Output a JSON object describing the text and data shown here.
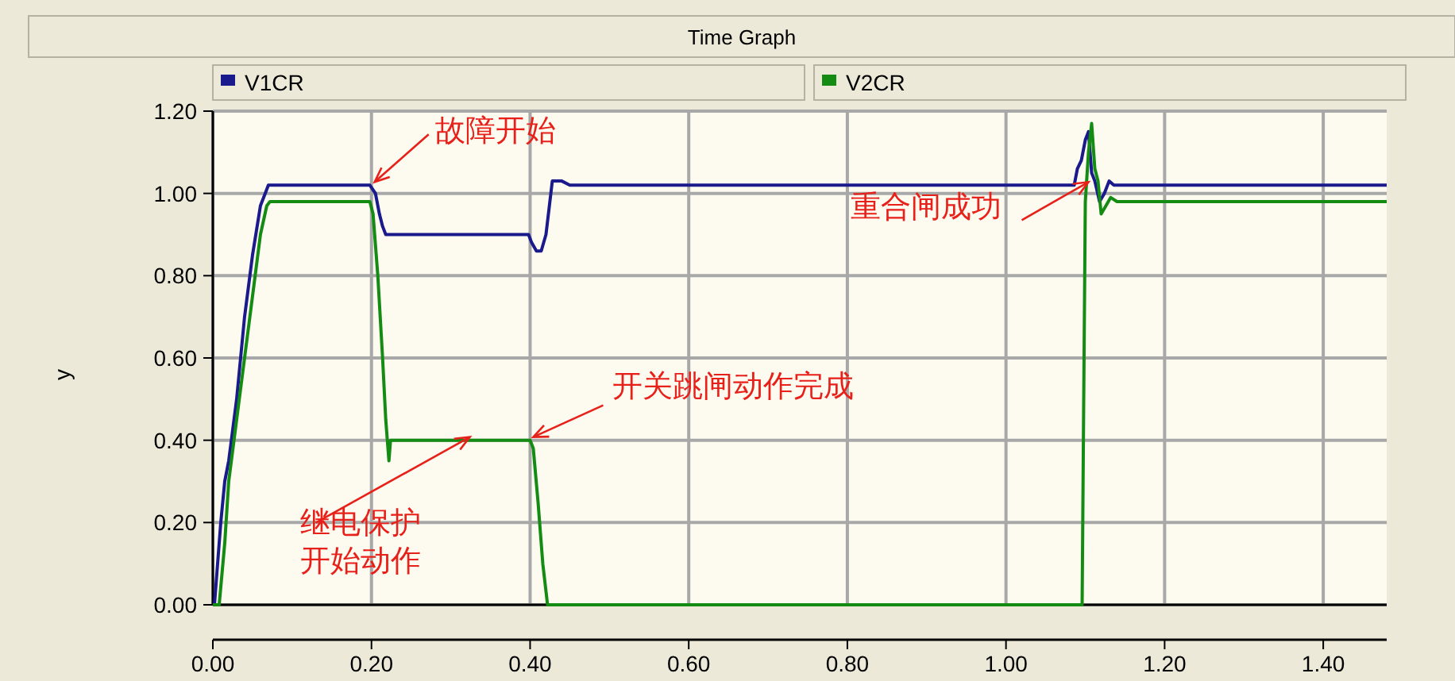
{
  "chart_data": {
    "type": "line",
    "title": "Time Graph",
    "ylabel": "y",
    "xlim": [
      0,
      1.48
    ],
    "ylim": [
      0,
      1.2
    ],
    "xticks": [
      {
        "value": 0,
        "label": "0.00"
      },
      {
        "value": 0.2,
        "label": "0.20"
      },
      {
        "value": 0.4,
        "label": "0.40"
      },
      {
        "value": 0.6,
        "label": "0.60"
      },
      {
        "value": 0.8,
        "label": "0.80"
      },
      {
        "value": 1.0,
        "label": "1.00"
      },
      {
        "value": 1.2,
        "label": "1.20"
      },
      {
        "value": 1.4,
        "label": "1.40"
      }
    ],
    "yticks": [
      {
        "value": 0,
        "label": "0.00"
      },
      {
        "value": 0.2,
        "label": "0.20"
      },
      {
        "value": 0.4,
        "label": "0.40"
      },
      {
        "value": 0.6,
        "label": "0.60"
      },
      {
        "value": 0.8,
        "label": "0.80"
      },
      {
        "value": 1.0,
        "label": "1.00"
      },
      {
        "value": 1.2,
        "label": "1.20"
      }
    ],
    "grid": true,
    "legend": "top",
    "series": [
      {
        "name": "V1CR",
        "color": "#1a1a8c",
        "x": [
          0,
          0.002,
          0.01,
          0.015,
          0.02,
          0.03,
          0.04,
          0.05,
          0.06,
          0.066,
          0.07,
          0.198,
          0.205,
          0.21,
          0.214,
          0.218,
          0.398,
          0.402,
          0.408,
          0.414,
          0.42,
          0.428,
          0.44,
          0.45,
          1.086,
          1.09,
          1.095,
          1.1,
          1.104,
          1.108,
          1.112,
          1.118,
          1.124,
          1.13,
          1.136,
          1.48
        ],
        "values": [
          0,
          0,
          0.2,
          0.3,
          0.35,
          0.5,
          0.7,
          0.85,
          0.97,
          1.0,
          1.02,
          1.02,
          1.0,
          0.95,
          0.92,
          0.9,
          0.9,
          0.88,
          0.86,
          0.86,
          0.9,
          1.03,
          1.03,
          1.02,
          1.02,
          1.06,
          1.08,
          1.13,
          1.15,
          1.05,
          1.03,
          0.98,
          1.0,
          1.03,
          1.02,
          1.02
        ]
      },
      {
        "name": "V2CR",
        "color": "#148c14",
        "x": [
          0,
          0.008,
          0.015,
          0.02,
          0.03,
          0.04,
          0.05,
          0.06,
          0.068,
          0.072,
          0.198,
          0.202,
          0.208,
          0.214,
          0.218,
          0.222,
          0.224,
          0.4,
          0.404,
          0.41,
          0.416,
          0.422,
          1.096,
          1.098,
          1.1,
          1.104,
          1.108,
          1.112,
          1.116,
          1.12,
          1.126,
          1.132,
          1.14,
          1.48
        ],
        "values": [
          0,
          0,
          0.15,
          0.3,
          0.45,
          0.6,
          0.75,
          0.9,
          0.97,
          0.98,
          0.98,
          0.95,
          0.8,
          0.6,
          0.45,
          0.35,
          0.4,
          0.4,
          0.38,
          0.25,
          0.1,
          0,
          0,
          0.5,
          0.98,
          1.1,
          1.17,
          1.06,
          1.03,
          0.95,
          0.97,
          0.99,
          0.98,
          0.98
        ]
      }
    ],
    "annotations": [
      {
        "text": "故障开始",
        "x": 0.2,
        "y": 1.02
      },
      {
        "text": "开关跳闸动作完成",
        "x": 0.4,
        "y": 0.4
      },
      {
        "text": "继电保护开始动作",
        "x": 0.32,
        "y": 0.4
      },
      {
        "text": "重合闸成功",
        "x": 1.1,
        "y": 1.02
      }
    ]
  }
}
